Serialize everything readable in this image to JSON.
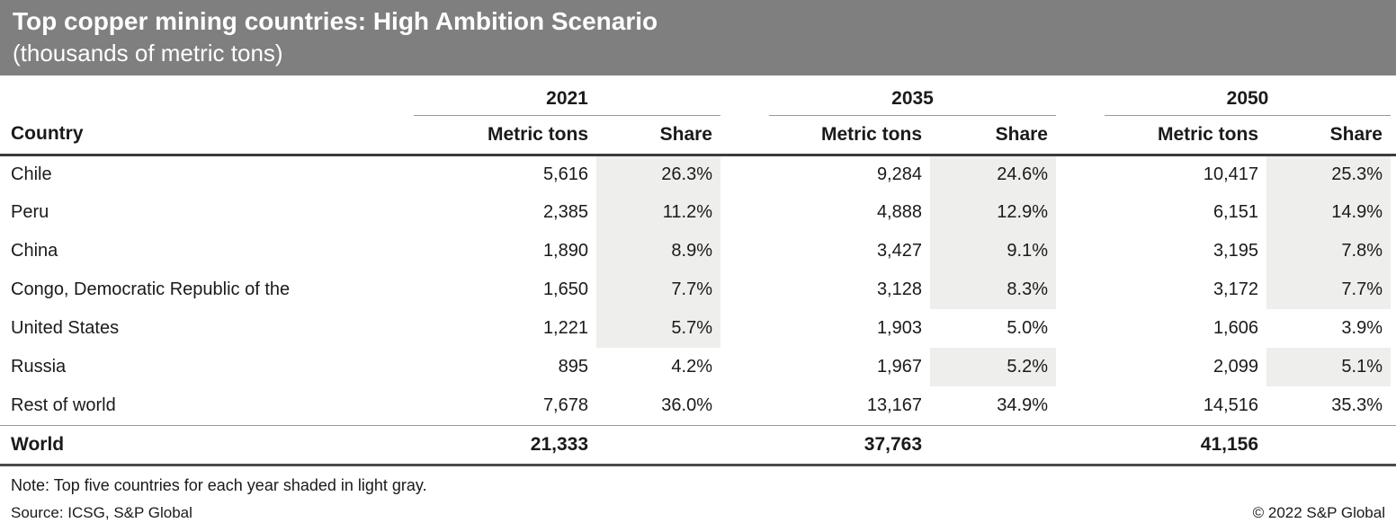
{
  "header": {
    "title": "Top copper mining countries: High Ambition Scenario",
    "subtitle": "(thousands of metric tons)"
  },
  "table": {
    "country_header": "Country",
    "year_groups": [
      {
        "year": "2021",
        "metric_tons_label": "Metric tons",
        "share_label": "Share"
      },
      {
        "year": "2035",
        "metric_tons_label": "Metric tons",
        "share_label": "Share"
      },
      {
        "year": "2050",
        "metric_tons_label": "Metric tons",
        "share_label": "Share"
      }
    ],
    "rows": [
      {
        "country": "Chile",
        "mt2021": "5,616",
        "share2021": "26.3%",
        "mt2035": "9,284",
        "share2035": "24.6%",
        "mt2050": "10,417",
        "share2050": "25.3%"
      },
      {
        "country": "Peru",
        "mt2021": "2,385",
        "share2021": "11.2%",
        "mt2035": "4,888",
        "share2035": "12.9%",
        "mt2050": "6,151",
        "share2050": "14.9%"
      },
      {
        "country": "China",
        "mt2021": "1,890",
        "share2021": "8.9%",
        "mt2035": "3,427",
        "share2035": "9.1%",
        "mt2050": "3,195",
        "share2050": "7.8%"
      },
      {
        "country": "Congo, Democratic Republic of the",
        "mt2021": "1,650",
        "share2021": "7.7%",
        "mt2035": "3,128",
        "share2035": "8.3%",
        "mt2050": "3,172",
        "share2050": "7.7%"
      },
      {
        "country": "United States",
        "mt2021": "1,221",
        "share2021": "5.7%",
        "mt2035": "1,903",
        "share2035": "5.0%",
        "mt2050": "1,606",
        "share2050": "3.9%"
      },
      {
        "country": "Russia",
        "mt2021": "895",
        "share2021": "4.2%",
        "mt2035": "1,967",
        "share2035": "5.2%",
        "mt2050": "2,099",
        "share2050": "5.1%"
      },
      {
        "country": "Rest of world",
        "mt2021": "7,678",
        "share2021": "36.0%",
        "mt2035": "13,167",
        "share2035": "34.9%",
        "mt2050": "14,516",
        "share2050": "35.3%"
      }
    ],
    "world": {
      "label": "World",
      "mt2021": "21,333",
      "mt2035": "37,763",
      "mt2050": "41,156"
    }
  },
  "footer": {
    "note": "Note: Top five countries for each year shaded in light gray.",
    "source": "Source: ICSG, S&P Global",
    "copyright": "© 2022 S&P Global"
  },
  "colors": {
    "banner_bg": "#7F7F7F",
    "banner_text": "#FFFFFF",
    "shade": "#EEEEEC",
    "text": "#1A1A1A",
    "rule_dark": "#3C3C3C",
    "rule_light": "#999999"
  },
  "chart_data": {
    "type": "table",
    "title": "Top copper mining countries: High Ambition Scenario",
    "subtitle": "(thousands of metric tons)",
    "column_groups": [
      "2021",
      "2035",
      "2050"
    ],
    "columns": [
      "Country",
      "Metric tons",
      "Share",
      "Metric tons",
      "Share",
      "Metric tons",
      "Share"
    ],
    "rows": [
      {
        "country": "Chile",
        "y2021": {
          "metric_tons": 5616,
          "share_pct": 26.3
        },
        "y2035": {
          "metric_tons": 9284,
          "share_pct": 24.6
        },
        "y2050": {
          "metric_tons": 10417,
          "share_pct": 25.3
        }
      },
      {
        "country": "Peru",
        "y2021": {
          "metric_tons": 2385,
          "share_pct": 11.2
        },
        "y2035": {
          "metric_tons": 4888,
          "share_pct": 12.9
        },
        "y2050": {
          "metric_tons": 6151,
          "share_pct": 14.9
        }
      },
      {
        "country": "China",
        "y2021": {
          "metric_tons": 1890,
          "share_pct": 8.9
        },
        "y2035": {
          "metric_tons": 3427,
          "share_pct": 9.1
        },
        "y2050": {
          "metric_tons": 3195,
          "share_pct": 7.8
        }
      },
      {
        "country": "Congo, Democratic Republic of the",
        "y2021": {
          "metric_tons": 1650,
          "share_pct": 7.7
        },
        "y2035": {
          "metric_tons": 3128,
          "share_pct": 8.3
        },
        "y2050": {
          "metric_tons": 3172,
          "share_pct": 7.7
        }
      },
      {
        "country": "United States",
        "y2021": {
          "metric_tons": 1221,
          "share_pct": 5.7
        },
        "y2035": {
          "metric_tons": 1903,
          "share_pct": 5.0
        },
        "y2050": {
          "metric_tons": 1606,
          "share_pct": 3.9
        }
      },
      {
        "country": "Russia",
        "y2021": {
          "metric_tons": 895,
          "share_pct": 4.2
        },
        "y2035": {
          "metric_tons": 1967,
          "share_pct": 5.2
        },
        "y2050": {
          "metric_tons": 2099,
          "share_pct": 5.1
        }
      },
      {
        "country": "Rest of world",
        "y2021": {
          "metric_tons": 7678,
          "share_pct": 36.0
        },
        "y2035": {
          "metric_tons": 13167,
          "share_pct": 34.9
        },
        "y2050": {
          "metric_tons": 14516,
          "share_pct": 35.3
        }
      }
    ],
    "world_totals": {
      "2021": 21333,
      "2035": 37763,
      "2050": 41156
    },
    "shaded_top5": {
      "2021": [
        "Chile",
        "Peru",
        "China",
        "Congo, Democratic Republic of the",
        "United States"
      ],
      "2035": [
        "Chile",
        "Peru",
        "China",
        "Congo, Democratic Republic of the",
        "Russia"
      ],
      "2050": [
        "Chile",
        "Peru",
        "China",
        "Congo, Democratic Republic of the",
        "Russia"
      ]
    },
    "note": "Top five countries for each year shaded in light gray.",
    "source": "ICSG, S&P Global"
  }
}
